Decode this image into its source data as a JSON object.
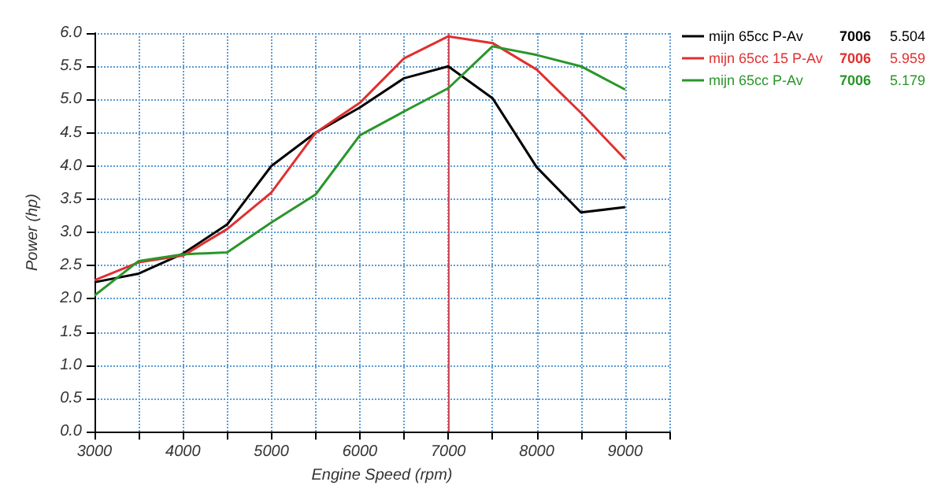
{
  "chart_data": {
    "type": "line",
    "xlabel": "Engine Speed (rpm)",
    "ylabel": "Power (hp)",
    "x": [
      3000,
      3500,
      4000,
      4500,
      5000,
      5500,
      6000,
      6500,
      7000,
      7500,
      8000,
      8500,
      9000
    ],
    "series": [
      {
        "name": "mijn 65cc P-Av",
        "color": "#000000",
        "values": [
          2.25,
          2.38,
          2.68,
          3.12,
          4.0,
          4.5,
          4.88,
          5.32,
          5.5,
          5.02,
          3.98,
          3.3,
          3.38
        ]
      },
      {
        "name": "mijn 65cc 15 P-Av",
        "color": "#e03030",
        "values": [
          2.28,
          2.55,
          2.65,
          3.05,
          3.6,
          4.5,
          4.95,
          5.62,
          5.95,
          5.85,
          5.45,
          4.8,
          4.1
        ]
      },
      {
        "name": "mijn 65cc P-Av",
        "color": "#2a962a",
        "values": [
          2.05,
          2.57,
          2.67,
          2.7,
          3.15,
          3.57,
          4.46,
          4.82,
          5.17,
          5.8,
          5.67,
          5.5,
          5.15
        ]
      }
    ],
    "annotations": [
      "7006",
      "5.504",
      "7006",
      "5.959",
      "7006",
      "5.179"
    ],
    "ref_lines": [
      {
        "axis": "x",
        "value": 7006,
        "color": "#d04050"
      }
    ],
    "xlim": [
      3000,
      9500
    ],
    "xticks": [
      3000,
      {
        "value": 3500,
        "label": null
      },
      4000,
      {
        "value": 4500,
        "label": null
      },
      5000,
      {
        "value": 5500,
        "label": null
      },
      6000,
      {
        "value": 6500,
        "label": null
      },
      7000,
      {
        "value": 7500,
        "label": null
      },
      8000,
      {
        "value": 8500,
        "label": null
      },
      9000,
      {
        "value": 9500,
        "label": null
      }
    ],
    "ylim": [
      0,
      6
    ],
    "yticks": [
      {
        "value": 0,
        "label": "0.0"
      },
      {
        "value": 0.5,
        "label": "0.5"
      },
      {
        "value": 1,
        "label": "1.0"
      },
      {
        "value": 1.5,
        "label": "1.5"
      },
      {
        "value": 2,
        "label": "2.0"
      },
      {
        "value": 2.5,
        "label": "2.5"
      },
      {
        "value": 3,
        "label": "3.0"
      },
      {
        "value": 3.5,
        "label": "3.5"
      },
      {
        "value": 4,
        "label": "4.0"
      },
      {
        "value": 4.5,
        "label": "4.5"
      },
      {
        "value": 5,
        "label": "5.0"
      },
      {
        "value": 5.5,
        "label": "5.5"
      },
      {
        "value": 6,
        "label": "6.0"
      }
    ],
    "grid": true,
    "legend": "top right",
    "marker": "none",
    "line_style": "solid"
  }
}
